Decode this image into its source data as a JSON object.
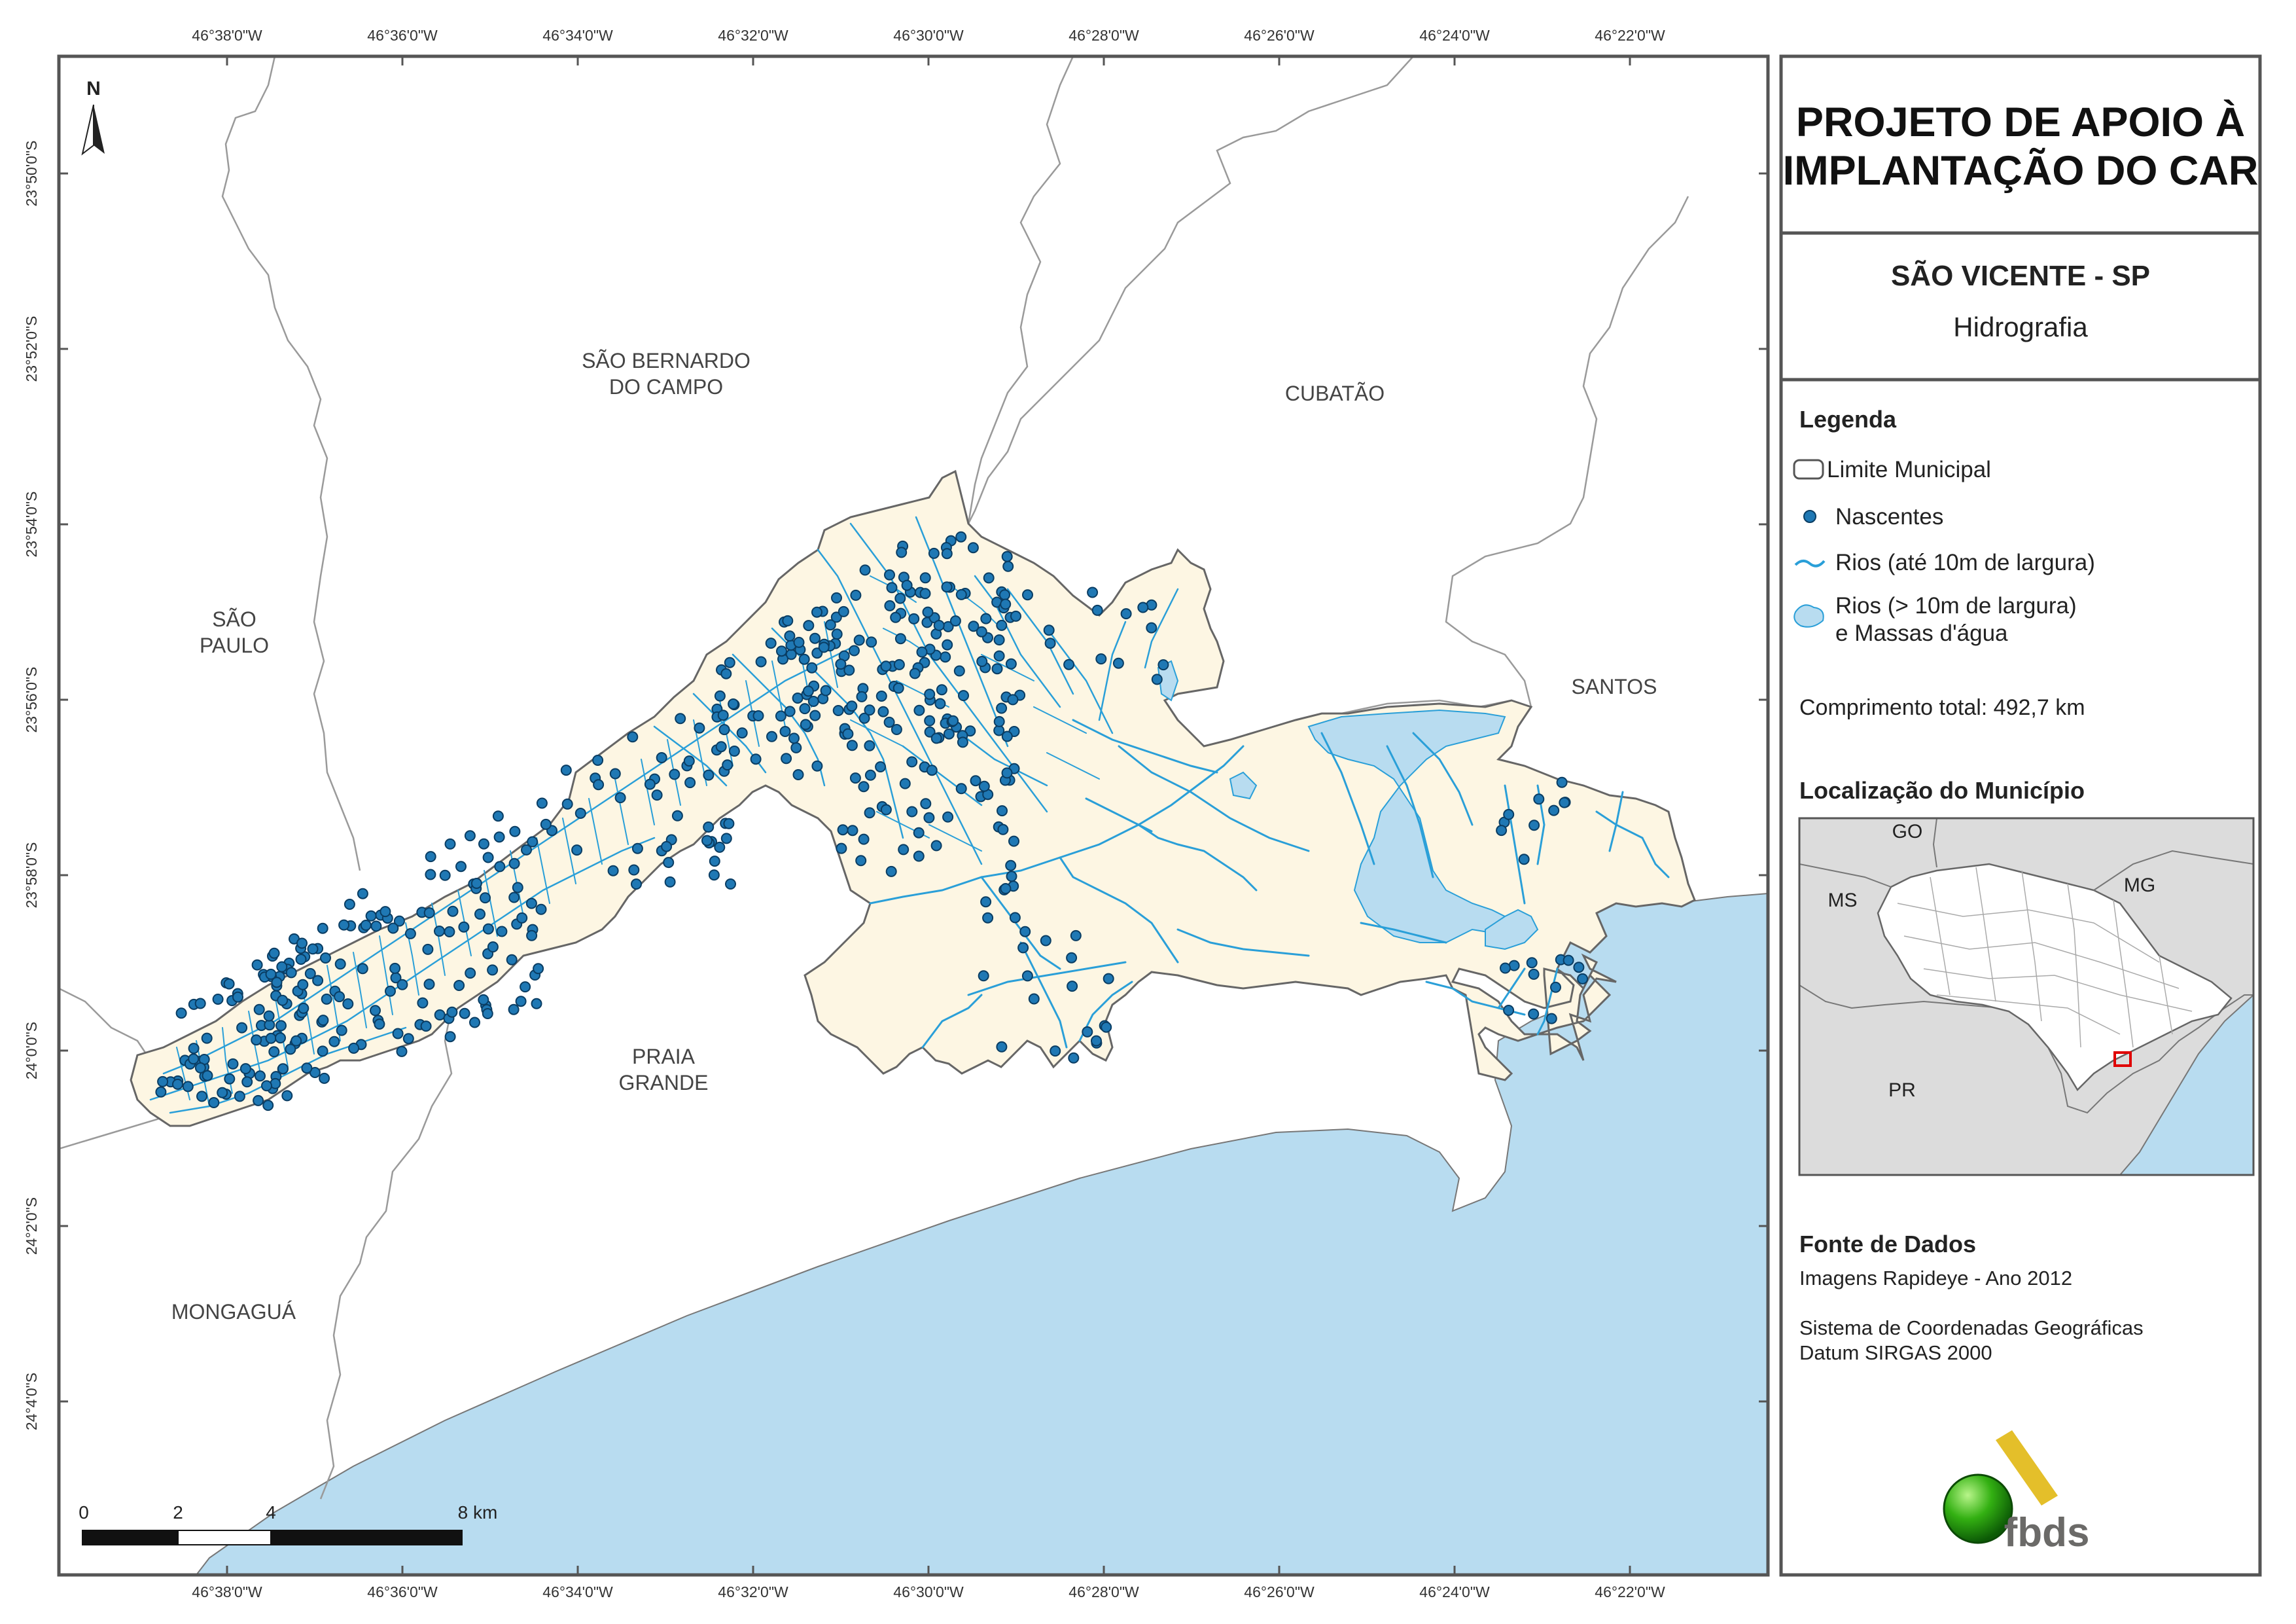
{
  "title_lines": [
    "PROJETO DE APOIO À",
    "IMPLANTAÇÃO DO CAR"
  ],
  "municipality": "SÃO VICENTE - SP",
  "theme": "Hidrografia",
  "legend": {
    "heading": "Legenda",
    "items": [
      {
        "symbol": "boundary",
        "label": "Limite Municipal"
      },
      {
        "symbol": "point",
        "label": "Nascentes"
      },
      {
        "symbol": "line",
        "label": "Rios (até 10m de largura)"
      },
      {
        "symbol": "polygon",
        "label_lines": [
          "Rios (> 10m de largura)",
          "e Massas d'água"
        ]
      }
    ]
  },
  "total_length": "Comprimento total: 492,7 km",
  "location": {
    "heading": "Localização do Município",
    "labels": [
      "GO",
      "MS",
      "MG",
      "PR"
    ]
  },
  "source": {
    "heading": "Fonte de Dados",
    "lines": [
      "Imagens Rapideye - Ano 2012",
      "Sistema de Coordenadas Geográficas",
      "Datum SIRGAS 2000"
    ]
  },
  "logo_text": "fbds",
  "north_label": "N",
  "places": [
    {
      "lines": [
        "SÃO BERNARDO",
        "DO CAMPO"
      ]
    },
    {
      "lines": [
        "CUBATÃO"
      ]
    },
    {
      "lines": [
        "SÃO",
        "PAULO"
      ]
    },
    {
      "lines": [
        "SANTOS"
      ]
    },
    {
      "lines": [
        "PRAIA",
        "GRANDE"
      ]
    },
    {
      "lines": [
        "MONGAGUÁ"
      ]
    }
  ],
  "lon_ticks": [
    "46°38'0\"W",
    "46°36'0\"W",
    "46°34'0\"W",
    "46°32'0\"W",
    "46°30'0\"W",
    "46°28'0\"W",
    "46°26'0\"W",
    "46°24'0\"W",
    "46°22'0\"W"
  ],
  "lat_ticks": [
    "23°50'0\"S",
    "23°52'0\"S",
    "23°54'0\"S",
    "23°56'0\"S",
    "23°58'0\"S",
    "24°0'0\"S",
    "24°2'0\"S",
    "24°4'0\"S"
  ],
  "scale_labels": [
    "0",
    "2",
    "4",
    "8 km"
  ],
  "colors": {
    "municipality_fill": "#fdf6e3",
    "water": "#b8dcf0",
    "river": "#2a9fd8",
    "spring": "#1f78b4",
    "boundary": "#888888",
    "frame": "#555555"
  }
}
